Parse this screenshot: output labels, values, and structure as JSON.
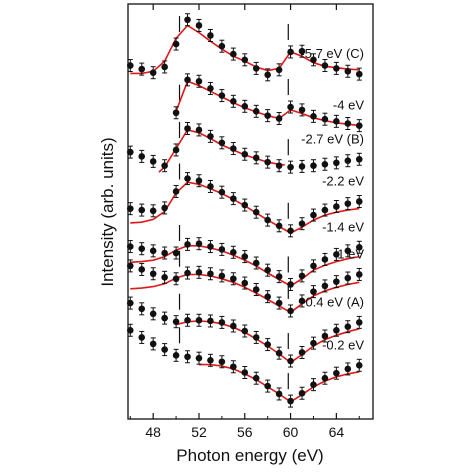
{
  "chart_data": {
    "type": "line",
    "xlabel": "Photon energy (eV)",
    "ylabel": "Intensity (arb. units)",
    "xlim": [
      45.8,
      67.2
    ],
    "x_ticks": [
      48,
      52,
      56,
      60,
      64
    ],
    "y_ticks_visible": false,
    "grid": false,
    "marker_color": "#111111",
    "fit_color": "#e01818",
    "dashed_markers_x": [
      50.3,
      59.8
    ],
    "series": [
      {
        "name": "-5.7 eV (C)",
        "x": [
          46,
          47,
          48,
          49,
          50,
          51,
          52,
          53,
          54,
          55,
          56,
          57,
          58,
          59,
          60,
          61,
          62,
          63,
          64,
          65,
          66
        ],
        "y": [
          6.14,
          6.09,
          6.04,
          6.12,
          6.44,
          6.78,
          6.7,
          6.56,
          6.41,
          6.3,
          6.22,
          6.1,
          6.01,
          6.08,
          6.33,
          6.34,
          6.22,
          6.14,
          6.1,
          6.06,
          6.02
        ],
        "fit_x": [
          46,
          47,
          48,
          49,
          50,
          51,
          52,
          53,
          54,
          55,
          56,
          57,
          58,
          59,
          60,
          61,
          62,
          63,
          64,
          65,
          66
        ],
        "fit_y": [
          6.03,
          6.03,
          6.06,
          6.2,
          6.52,
          6.7,
          6.6,
          6.48,
          6.37,
          6.27,
          6.2,
          6.12,
          6.07,
          6.1,
          6.33,
          6.27,
          6.18,
          6.13,
          6.11,
          6.09,
          6.08
        ]
      },
      {
        "name": "-4 eV",
        "x": [
          50,
          51,
          52,
          53,
          54,
          55,
          56,
          57,
          58,
          59,
          60,
          61,
          62,
          63,
          64,
          65,
          66
        ],
        "y": [
          5.48,
          5.94,
          5.92,
          5.82,
          5.72,
          5.64,
          5.57,
          5.5,
          5.44,
          5.4,
          5.56,
          5.52,
          5.43,
          5.39,
          5.36,
          5.33,
          5.3
        ],
        "fit_x": [
          50,
          51,
          52,
          53,
          54,
          55,
          56,
          57,
          58,
          59,
          60,
          61,
          62,
          63,
          64,
          65,
          66
        ],
        "fit_y": [
          5.5,
          5.92,
          5.86,
          5.78,
          5.7,
          5.62,
          5.55,
          5.49,
          5.44,
          5.4,
          5.52,
          5.47,
          5.41,
          5.37,
          5.34,
          5.32,
          5.3
        ]
      },
      {
        "name": "-2.7 eV (B)",
        "x": [
          46,
          47,
          48,
          49,
          50,
          51,
          52,
          53,
          54,
          55,
          56,
          57,
          58,
          59,
          60,
          61,
          62,
          63,
          64,
          65,
          66
        ],
        "y": [
          4.93,
          4.87,
          4.8,
          4.74,
          4.96,
          5.26,
          5.24,
          5.15,
          5.06,
          4.98,
          4.9,
          4.85,
          4.79,
          4.74,
          4.72,
          4.73,
          4.74,
          4.76,
          4.78,
          4.81,
          4.83
        ],
        "fit_x": [
          48.5,
          49,
          50,
          51,
          52,
          53,
          54,
          55,
          56,
          57,
          58,
          59,
          59.5
        ],
        "fit_y": [
          4.65,
          4.72,
          4.98,
          5.24,
          5.2,
          5.12,
          5.03,
          4.96,
          4.89,
          4.84,
          4.79,
          4.76,
          4.75
        ]
      },
      {
        "name": "-2.2 eV",
        "x": [
          46,
          47,
          48,
          49,
          50,
          51,
          52,
          53,
          54,
          55,
          56,
          57,
          58,
          59,
          60,
          61,
          62,
          63,
          64,
          65,
          66
        ],
        "y": [
          4.14,
          4.12,
          4.11,
          4.15,
          4.38,
          4.56,
          4.53,
          4.45,
          4.37,
          4.28,
          4.19,
          4.09,
          3.98,
          3.9,
          3.83,
          3.93,
          4.05,
          4.12,
          4.17,
          4.21,
          4.24
        ],
        "fit_x": [
          46,
          47,
          48,
          49,
          50,
          51,
          52,
          53,
          54,
          55,
          56,
          57,
          58,
          59,
          60,
          61,
          62,
          63,
          64,
          65,
          66
        ],
        "fit_y": [
          3.94,
          3.95,
          3.99,
          4.1,
          4.36,
          4.51,
          4.48,
          4.42,
          4.35,
          4.27,
          4.18,
          4.08,
          3.98,
          3.89,
          3.8,
          3.88,
          3.98,
          4.05,
          4.09,
          4.12,
          4.14
        ]
      },
      {
        "name": "-1.4 eV",
        "x": [
          46,
          47,
          48,
          49,
          50,
          51,
          52,
          53,
          54,
          55,
          56,
          57,
          58,
          59,
          60,
          61,
          62,
          63,
          64,
          65,
          66
        ],
        "y": [
          3.61,
          3.58,
          3.55,
          3.52,
          3.52,
          3.64,
          3.65,
          3.61,
          3.57,
          3.53,
          3.47,
          3.38,
          3.28,
          3.19,
          3.08,
          3.2,
          3.34,
          3.43,
          3.5,
          3.55,
          3.6
        ],
        "fit_x": [
          46,
          47,
          48,
          49,
          50,
          51,
          52,
          53,
          54,
          55,
          56,
          57,
          58,
          59,
          60,
          61,
          62,
          63,
          64,
          65,
          66
        ],
        "fit_y": [
          3.39,
          3.4,
          3.42,
          3.47,
          3.56,
          3.62,
          3.62,
          3.59,
          3.55,
          3.49,
          3.42,
          3.34,
          3.24,
          3.15,
          3.06,
          3.16,
          3.28,
          3.35,
          3.4,
          3.44,
          3.47
        ]
      },
      {
        "name": "-1 eV",
        "x": [
          46,
          47,
          48,
          49,
          50,
          51,
          52,
          53,
          54,
          55,
          56,
          57,
          58,
          59,
          60,
          61,
          62,
          63,
          64,
          65,
          66
        ],
        "y": [
          3.34,
          3.29,
          3.23,
          3.18,
          3.16,
          3.24,
          3.25,
          3.23,
          3.2,
          3.16,
          3.1,
          3.01,
          2.91,
          2.82,
          2.71,
          2.85,
          2.98,
          3.06,
          3.12,
          3.17,
          3.22
        ],
        "fit_x": [
          46,
          47,
          48,
          49,
          50,
          51,
          52,
          53,
          54,
          55,
          56,
          57,
          58,
          59,
          60,
          61,
          62,
          63,
          64,
          65,
          66
        ],
        "fit_y": [
          3.02,
          3.03,
          3.05,
          3.09,
          3.17,
          3.22,
          3.22,
          3.2,
          3.16,
          3.11,
          3.04,
          2.96,
          2.87,
          2.78,
          2.69,
          2.81,
          2.92,
          2.99,
          3.04,
          3.08,
          3.11
        ]
      },
      {
        "name": "-0.4 eV (A)",
        "x": [
          46,
          47,
          48,
          49,
          50,
          51,
          52,
          53,
          54,
          55,
          56,
          57,
          58,
          59,
          60,
          61,
          62,
          63,
          64,
          65,
          66
        ],
        "y": [
          2.82,
          2.74,
          2.67,
          2.61,
          2.56,
          2.58,
          2.58,
          2.57,
          2.55,
          2.5,
          2.43,
          2.34,
          2.24,
          2.12,
          2.01,
          2.13,
          2.26,
          2.36,
          2.44,
          2.49,
          2.55
        ],
        "fit_x": [
          50,
          51,
          52,
          53,
          54,
          55,
          56,
          57,
          58,
          59,
          60,
          61,
          62,
          63,
          64,
          65,
          66
        ],
        "fit_y": [
          2.52,
          2.56,
          2.57,
          2.56,
          2.53,
          2.48,
          2.41,
          2.32,
          2.22,
          2.11,
          1.99,
          2.1,
          2.22,
          2.31,
          2.37,
          2.42,
          2.46
        ]
      },
      {
        "name": "-0.2 eV",
        "x": [
          46,
          47,
          48,
          49,
          50,
          51,
          52,
          53,
          54,
          55,
          56,
          57,
          58,
          59,
          60,
          61,
          62,
          63,
          64,
          65,
          66
        ],
        "y": [
          2.44,
          2.34,
          2.25,
          2.17,
          2.09,
          2.07,
          2.05,
          2.02,
          2.0,
          1.93,
          1.85,
          1.77,
          1.66,
          1.55,
          1.45,
          1.56,
          1.68,
          1.77,
          1.84,
          1.9,
          1.95
        ],
        "fit_x": [
          52,
          53,
          54,
          55,
          56,
          57,
          58,
          59,
          60,
          61,
          62,
          63,
          64,
          65,
          66
        ],
        "fit_y": [
          1.96,
          1.96,
          1.94,
          1.9,
          1.83,
          1.75,
          1.65,
          1.55,
          1.44,
          1.54,
          1.65,
          1.73,
          1.79,
          1.83,
          1.86
        ]
      }
    ]
  }
}
